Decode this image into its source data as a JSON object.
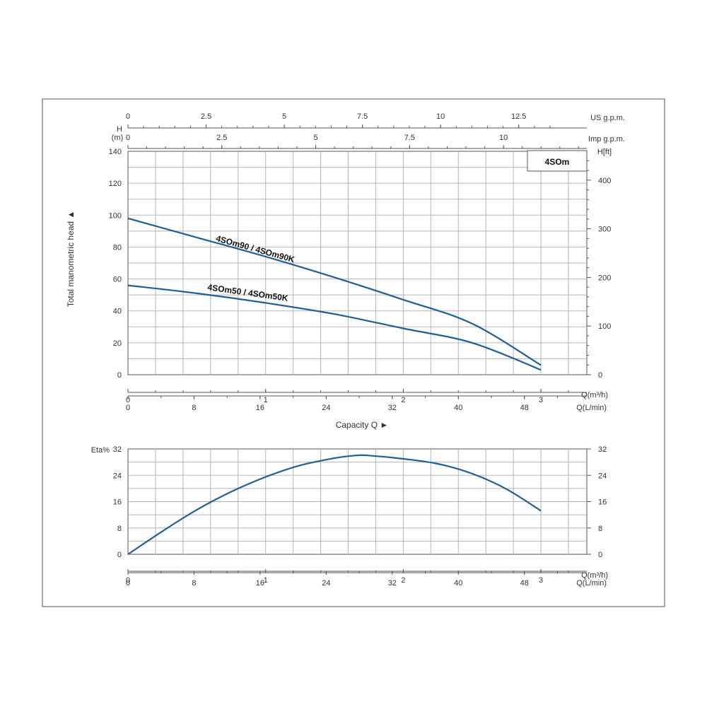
{
  "colors": {
    "curve": "#1f5f93",
    "grid": "#b5b5b5",
    "frame": "#555555",
    "axis": "#555555",
    "text": "#333333"
  },
  "badge": "4SOm",
  "chart_data": [
    {
      "type": "line",
      "chart": "head",
      "ylabel": "Total manometric head",
      "y_unit_left": "(m)",
      "y_unit_left_letter": "H",
      "y_unit_right": "H[ft]",
      "xlabel": "Capacity Q",
      "xlim": [
        0,
        3.3
      ],
      "ylim": [
        0,
        140
      ],
      "y_ticks": [
        "0",
        "20",
        "40",
        "60",
        "80",
        "100",
        "120",
        "140"
      ],
      "y_right_ticks": [
        "0",
        "100",
        "200",
        "300",
        "400"
      ],
      "x_axes": [
        {
          "unit": "US g.p.m.",
          "ticks": [
            "0",
            "2.5",
            "5",
            "7.5",
            "10",
            "12.5"
          ]
        },
        {
          "unit": "Imp g.p.m.",
          "ticks": [
            "0",
            "2.5",
            "5",
            "7.5",
            "10"
          ]
        },
        {
          "unit": "Q(m³/h)",
          "ticks": [
            "0",
            "1",
            "2",
            "3"
          ]
        },
        {
          "unit": "Q(L/min)",
          "ticks": [
            "0",
            "8",
            "16",
            "24",
            "32",
            "40",
            "48"
          ]
        }
      ],
      "grid": true,
      "series": [
        {
          "name": "4SOm90 / 4SOm90K",
          "x": [
            0,
            0.5,
            1.0,
            1.5,
            2.0,
            2.5,
            3.0
          ],
          "y": [
            98,
            86,
            74,
            61,
            47,
            32,
            6
          ]
        },
        {
          "name": "4SOm50 / 4SOm50K",
          "x": [
            0,
            0.5,
            1.0,
            1.5,
            2.0,
            2.5,
            3.0
          ],
          "y": [
            56,
            51,
            45,
            38,
            29,
            20,
            3
          ]
        }
      ]
    },
    {
      "type": "line",
      "chart": "efficiency",
      "ylabel": "Eta%",
      "xlim": [
        0,
        3.3
      ],
      "ylim": [
        0,
        32
      ],
      "y_ticks": [
        "0",
        "8",
        "16",
        "24",
        "32"
      ],
      "x_axes": [
        {
          "unit": "Q(m³/h)",
          "ticks": [
            "0",
            "1",
            "2",
            "3"
          ]
        },
        {
          "unit": "Q(L/min)",
          "ticks": [
            "0",
            "8",
            "16",
            "24",
            "32",
            "40",
            "48"
          ]
        }
      ],
      "grid": true,
      "series": [
        {
          "x": [
            0,
            0.25,
            0.5,
            0.75,
            1.0,
            1.25,
            1.5,
            1.65,
            1.75,
            2.0,
            2.25,
            2.5,
            2.75,
            3.0
          ],
          "y": [
            0,
            7,
            13.5,
            19,
            23.5,
            27,
            29.2,
            30,
            30,
            29,
            27.5,
            24.5,
            19.8,
            13.2
          ]
        }
      ]
    }
  ]
}
